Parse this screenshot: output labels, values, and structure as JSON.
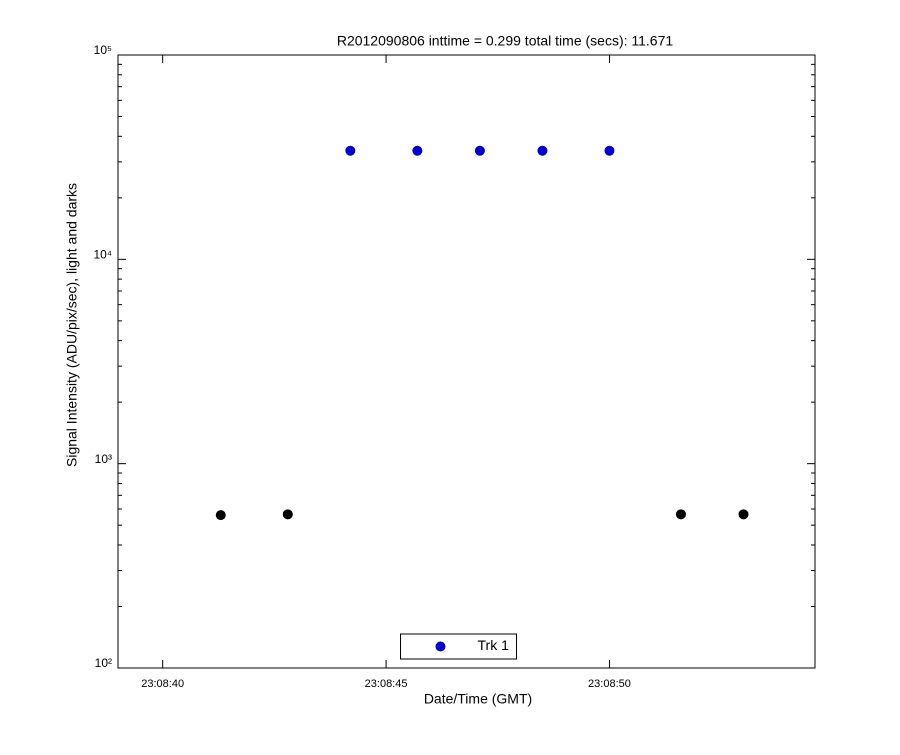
{
  "chart_data": {
    "type": "scatter",
    "title": "R2012090806 inttime = 0.299 total time (secs): 11.671",
    "xlabel": "Date/Time (GMT)",
    "ylabel": "Signal Intensity (ADU/pix/sec), light and darks",
    "xlim": [
      83319.0,
      83334.6
    ],
    "xticks": [
      {
        "value": 83320,
        "label": "23:08:40"
      },
      {
        "value": 83325,
        "label": "23:08:45"
      },
      {
        "value": 83330,
        "label": "23:08:50"
      }
    ],
    "ylim": [
      100,
      100000
    ],
    "yticks": [
      {
        "value": 100,
        "label": "10²"
      },
      {
        "value": 1000,
        "label": "10³"
      },
      {
        "value": 10000,
        "label": "10⁴"
      },
      {
        "value": 100000,
        "label": "10⁵"
      }
    ],
    "log_y": true,
    "legend": "bottom",
    "series": [
      {
        "name": "Trk 1",
        "color": "#0000cc",
        "x": [
          83324.2,
          83325.7,
          83327.1,
          83328.5,
          83330.0
        ],
        "values": [
          34000,
          34000,
          34000,
          34000,
          34000
        ]
      },
      {
        "color": "#000000",
        "x": [
          83321.3,
          83322.8,
          83331.6,
          83333.0
        ],
        "values": [
          560,
          565,
          565,
          565
        ]
      }
    ]
  }
}
